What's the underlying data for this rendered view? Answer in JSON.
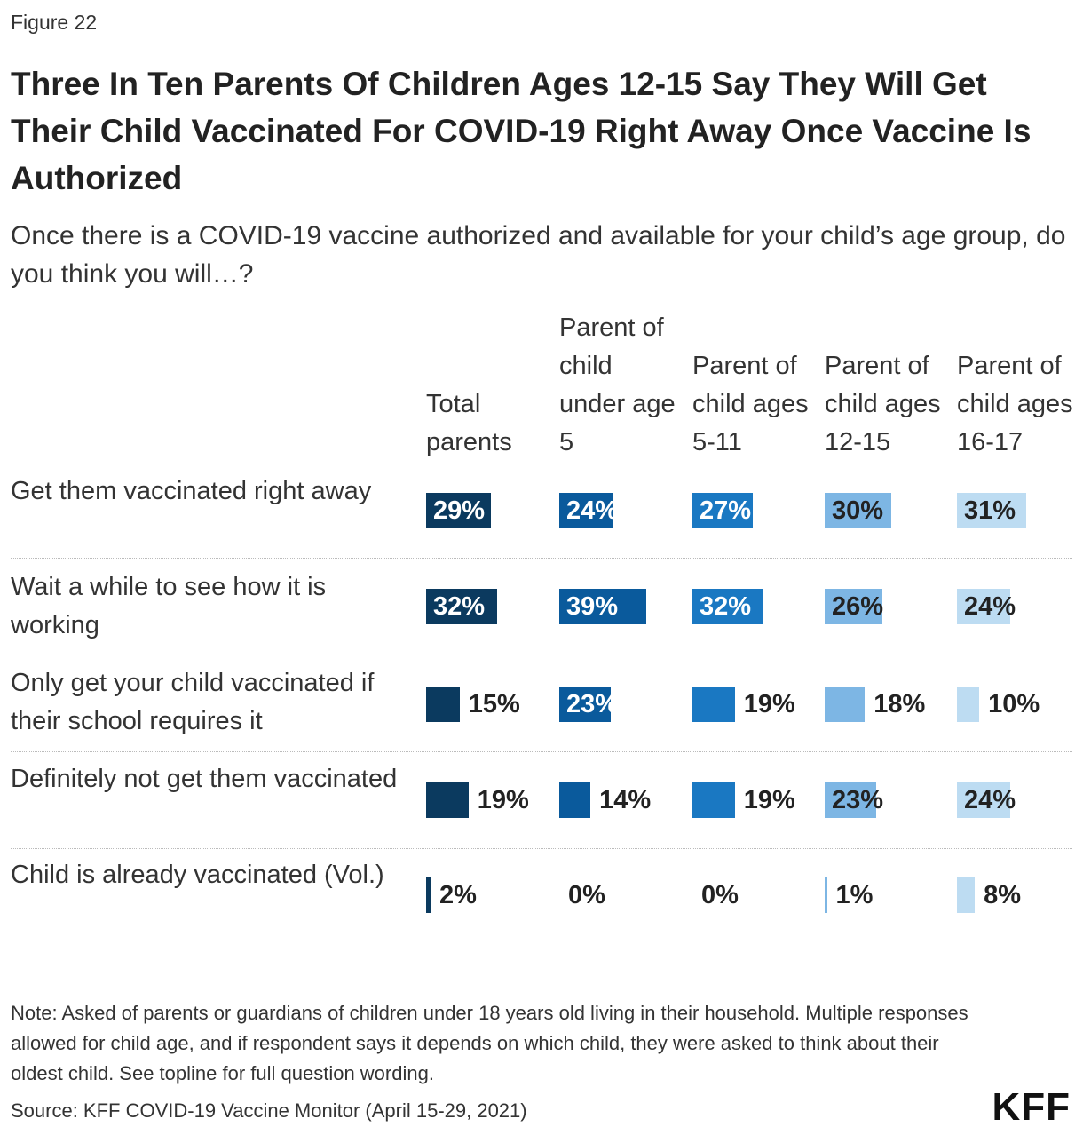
{
  "figure_label": "Figure 22",
  "title": "Three In Ten Parents Of Children Ages 12-15 Say They Will Get Their Child Vaccinated For COVID-19 Right Away Once Vaccine Is Authorized",
  "subtitle": "Once there is a COVID-19 vaccine authorized and available for your child’s age group, do you think you will…?",
  "note": "Note: Asked of parents or guardians of children under 18 years old living in their household. Multiple responses allowed for child age, and if respondent says it depends on which child, they were asked to think about their oldest child. See topline for full question wording.",
  "source": "Source: KFF COVID-19 Vaccine Monitor (April 15-29, 2021)",
  "logo_text": "KFF",
  "colors": {
    "total": "#0b3a5f",
    "under5": "#0a5a9c",
    "ages5_11": "#1a78c2",
    "ages12_15": "#7db6e4",
    "ages16_17": "#bddcf2",
    "label_light": "#ffffff",
    "label_dark": "#222222"
  },
  "chart_data": {
    "type": "table",
    "title": "Three In Ten Parents Of Children Ages 12-15 Say They Will Get Their Child Vaccinated For COVID-19 Right Away Once Vaccine Is Authorized",
    "columns": [
      "Total parents",
      "Parent of child under age 5",
      "Parent of child ages 5-11",
      "Parent of child ages 12-15",
      "Parent of child ages 16-17"
    ],
    "rows": [
      "Get them vaccinated right away",
      "Wait a while to see how it is working",
      "Only get your child vaccinated if their school requires it",
      "Definitely not get them vaccinated",
      "Child is already vaccinated (Vol.)"
    ],
    "series": [
      {
        "name": "Total parents",
        "values": [
          29,
          32,
          15,
          19,
          2
        ]
      },
      {
        "name": "Parent of child under age 5",
        "values": [
          24,
          39,
          23,
          14,
          0
        ]
      },
      {
        "name": "Parent of child ages 5-11",
        "values": [
          27,
          32,
          19,
          19,
          0
        ]
      },
      {
        "name": "Parent of child ages 12-15",
        "values": [
          30,
          26,
          18,
          23,
          1
        ]
      },
      {
        "name": "Parent of child ages 16-17",
        "values": [
          31,
          24,
          10,
          24,
          8
        ]
      }
    ],
    "value_suffix": "%",
    "max_value": 39
  }
}
